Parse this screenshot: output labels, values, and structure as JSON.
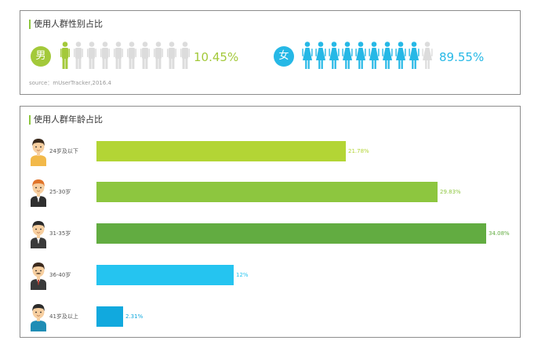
{
  "gender_panel": {
    "title": "使用人群性别占比",
    "male": {
      "label": "男",
      "percent_text": "10.45%",
      "value": 10.45,
      "color": "#a3c93a",
      "icon": "male-person-icon"
    },
    "female": {
      "label": "女",
      "percent_text": "89.55%",
      "value": 89.55,
      "color": "#26b8e6",
      "icon": "female-person-icon"
    },
    "figures_total": 10,
    "filled_male": 1,
    "filled_female": 9,
    "inactive_color": "#dcdcdc",
    "source": "source：mUserTracker,2016.4"
  },
  "age_panel": {
    "title": "使用人群年龄占比"
  },
  "chart_data": {
    "type": "bar",
    "orientation": "horizontal",
    "title": "使用人群年龄占比",
    "categories": [
      "24岁及以下",
      "25-30岁",
      "31-35岁",
      "36-40岁",
      "41岁及以上"
    ],
    "values": [
      21.78,
      29.83,
      34.08,
      12,
      2.31
    ],
    "value_labels": [
      "21.78%",
      "29.83%",
      "34.08%",
      "12%",
      "2.31%"
    ],
    "colors": [
      "#b3d535",
      "#8dc63f",
      "#62ac41",
      "#25c4f0",
      "#11a9de"
    ],
    "avatars": [
      "young-man-avatar-icon",
      "ginger-businessman-avatar-icon",
      "businessman-avatar-icon",
      "mustache-man-avatar-icon",
      "older-man-avatar-icon"
    ],
    "grid": false,
    "legend": "none"
  }
}
